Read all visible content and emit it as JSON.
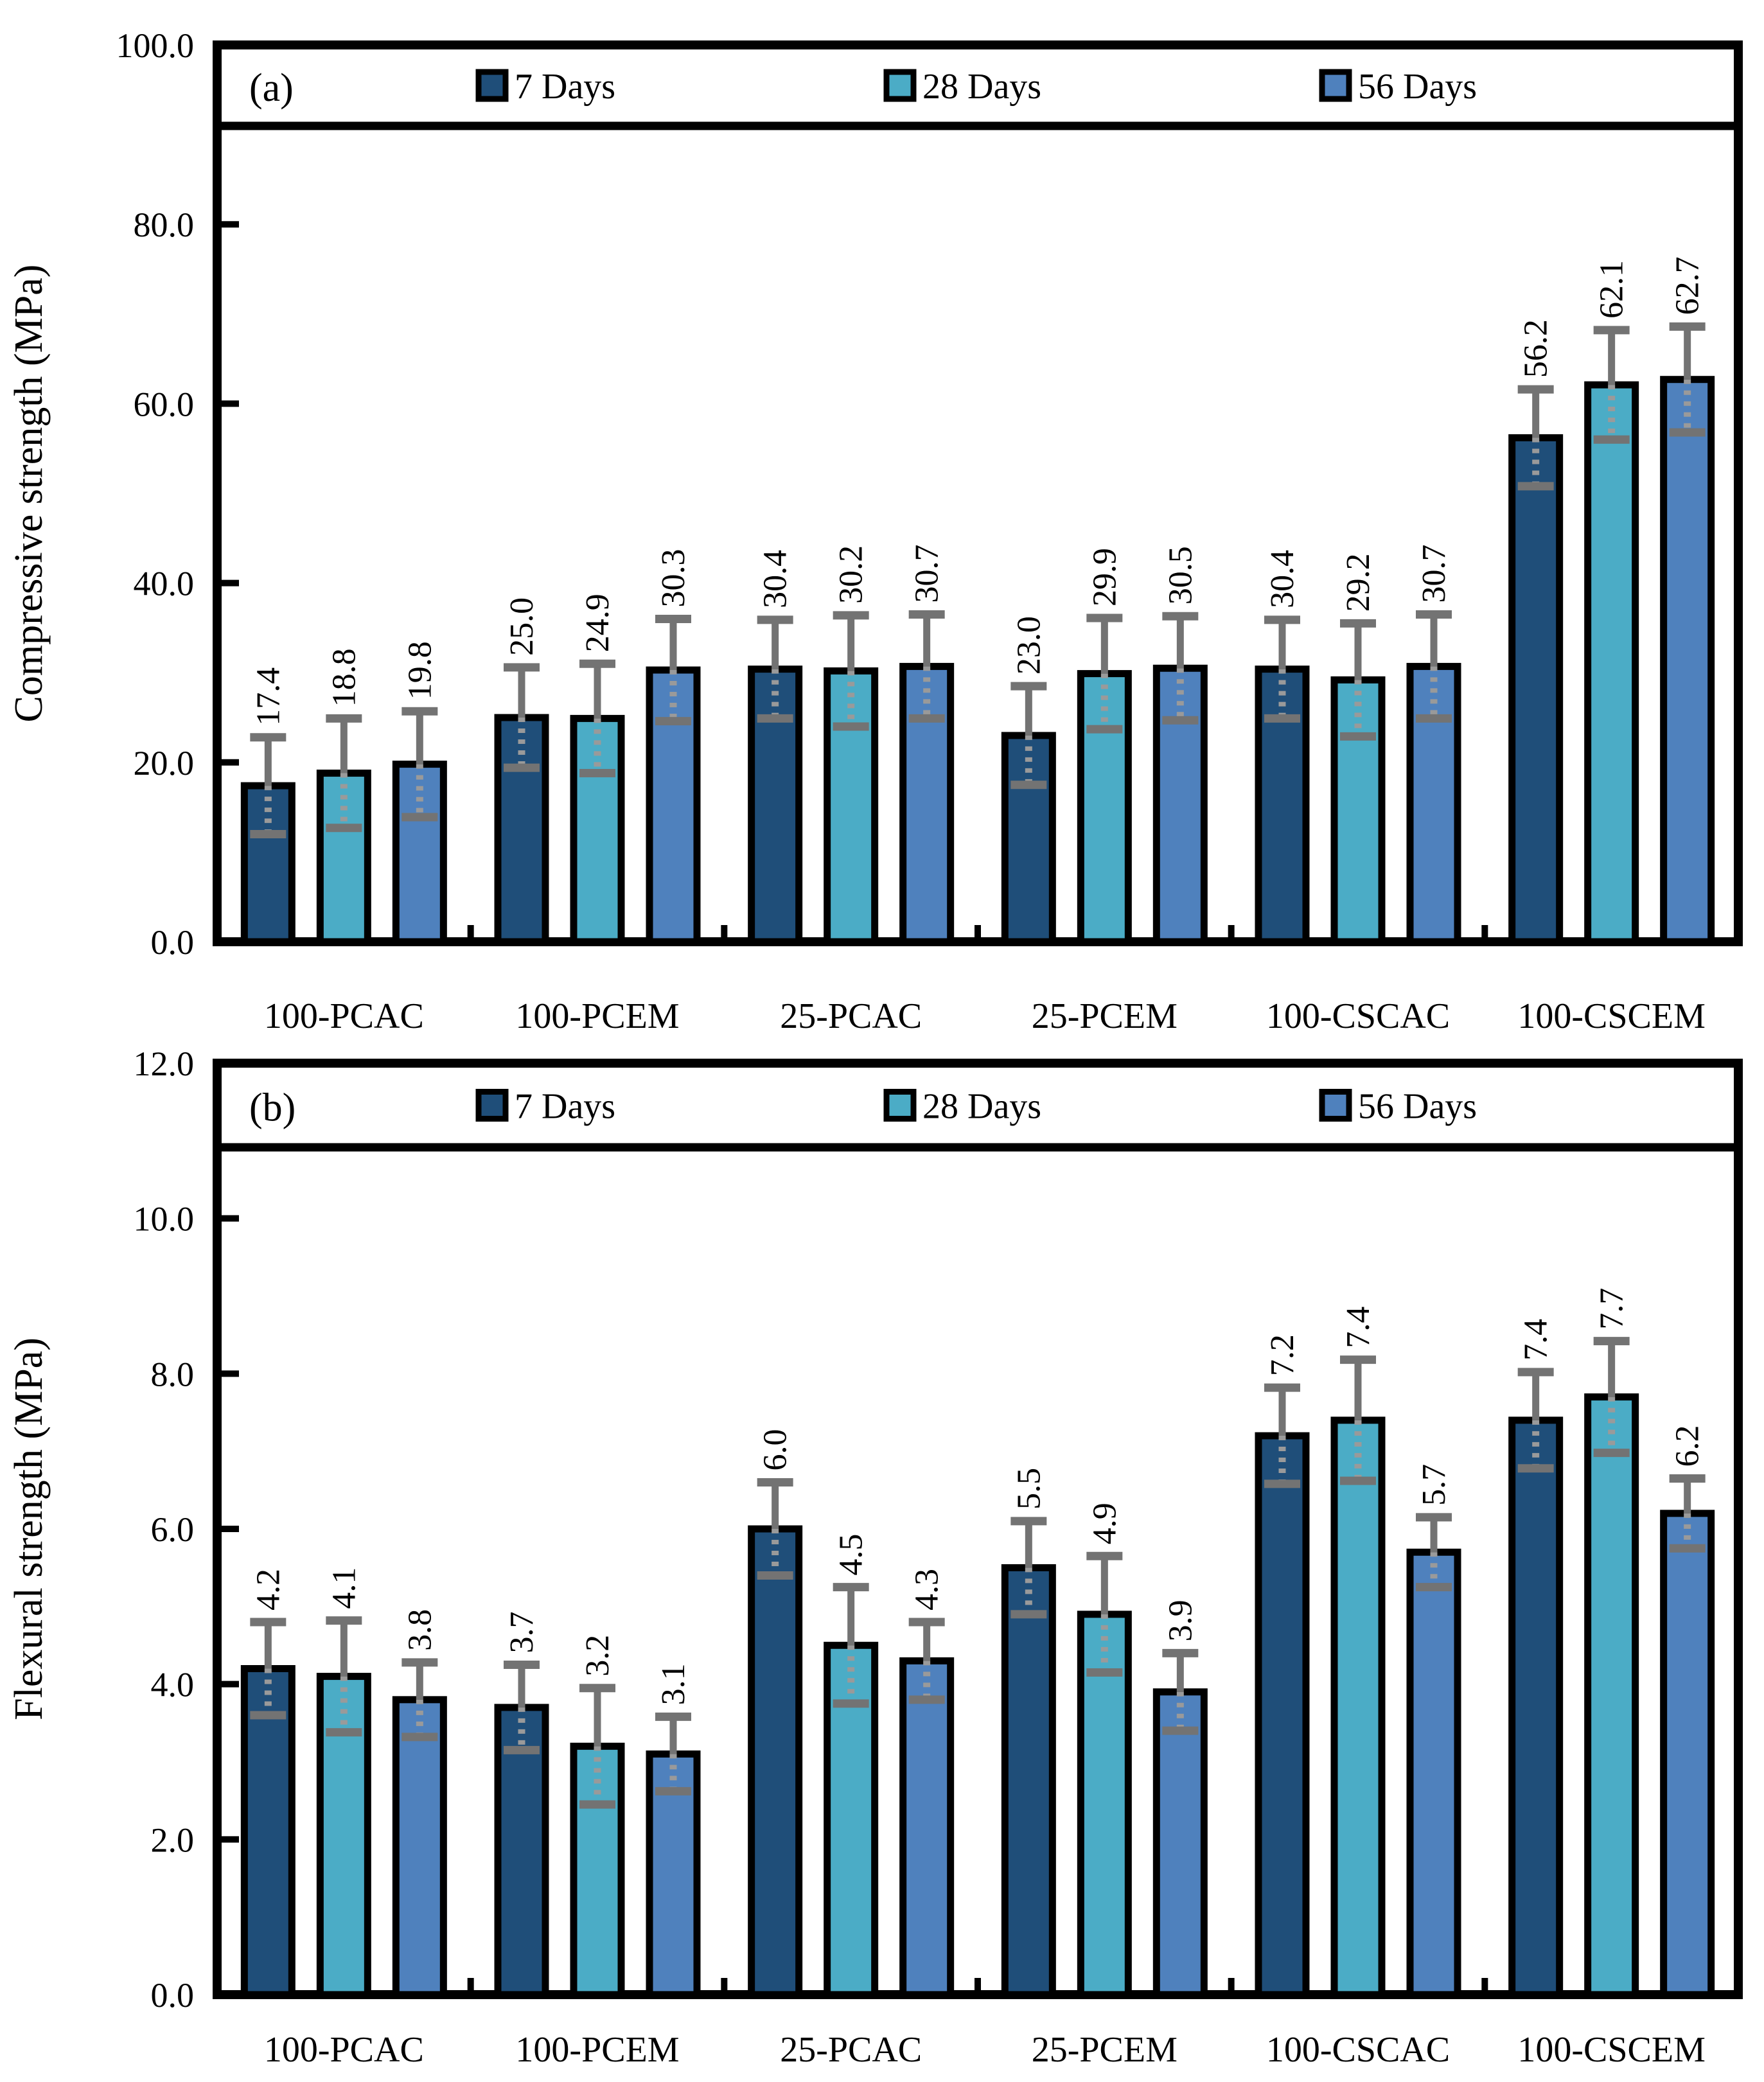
{
  "figure": {
    "background": "#ffffff",
    "bar_border_color": "#000000",
    "error_bar_color": "#737373",
    "error_bar_inner_color": "#9a9a9a"
  },
  "chart_data": [
    {
      "type": "bar",
      "panel_label": "(a)",
      "ylabel": "Compressive strength (MPa)",
      "ylim": [
        0,
        100
      ],
      "ytick_step": 20,
      "ytick_labels": [
        "0.0",
        "20.0",
        "40.0",
        "60.0",
        "80.0",
        "100.0"
      ],
      "grid": false,
      "legend_position": "top-band",
      "legend": [
        "7 Days",
        "28 Days",
        "56 Days"
      ],
      "categories": [
        "100-PCAC",
        "100-PCEM",
        "25-PCAC",
        "25-PCEM",
        "100-CSCAC",
        "100-CSCEM"
      ],
      "series": [
        {
          "name": "7 Days",
          "color": "#1F4E79",
          "values": [
            17.4,
            25.0,
            30.4,
            23.0,
            30.4,
            56.2
          ],
          "errors": [
            5.4,
            5.6,
            5.5,
            5.5,
            5.5,
            5.4
          ]
        },
        {
          "name": "28 Days",
          "color": "#4BACC6",
          "values": [
            18.8,
            24.9,
            30.2,
            29.9,
            29.2,
            62.1
          ],
          "errors": [
            6.1,
            6.1,
            6.2,
            6.2,
            6.3,
            6.1
          ]
        },
        {
          "name": "56 Days",
          "color": "#4F81BD",
          "values": [
            19.8,
            30.3,
            30.7,
            30.5,
            30.7,
            62.7
          ],
          "errors": [
            5.9,
            5.7,
            5.8,
            5.8,
            5.8,
            5.9
          ]
        }
      ],
      "value_labels": [
        [
          "17.4",
          "25.0",
          "30.4",
          "23.0",
          "30.4",
          "56.2"
        ],
        [
          "18.8",
          "24.9",
          "30.2",
          "29.9",
          "29.2",
          "62.1"
        ],
        [
          "19.8",
          "30.3",
          "30.7",
          "30.5",
          "30.7",
          "62.7"
        ]
      ]
    },
    {
      "type": "bar",
      "panel_label": "(b)",
      "ylabel": "Flexural strength (MPa)",
      "ylim": [
        0,
        12
      ],
      "ytick_step": 2,
      "ytick_labels": [
        "0.0",
        "2.0",
        "4.0",
        "6.0",
        "8.0",
        "10.0",
        "12.0"
      ],
      "grid": false,
      "legend_position": "top-band",
      "legend": [
        "7 Days",
        "28 Days",
        "56 Days"
      ],
      "categories": [
        "100-PCAC",
        "100-PCEM",
        "25-PCAC",
        "25-PCEM",
        "100-CSCAC",
        "100-CSCEM"
      ],
      "series": [
        {
          "name": "7 Days",
          "color": "#1F4E79",
          "values": [
            4.2,
            3.7,
            6.0,
            5.5,
            7.2,
            7.4
          ],
          "errors": [
            0.6,
            0.55,
            0.6,
            0.6,
            0.62,
            0.62
          ]
        },
        {
          "name": "28 Days",
          "color": "#4BACC6",
          "values": [
            4.1,
            3.2,
            4.5,
            4.9,
            7.4,
            7.7
          ],
          "errors": [
            0.72,
            0.75,
            0.75,
            0.75,
            0.78,
            0.72
          ]
        },
        {
          "name": "56 Days",
          "color": "#4F81BD",
          "values": [
            3.8,
            3.1,
            4.3,
            3.9,
            5.7,
            6.2
          ],
          "errors": [
            0.48,
            0.48,
            0.5,
            0.5,
            0.45,
            0.45
          ]
        }
      ],
      "value_labels": [
        [
          "4.2",
          "3.7",
          "6.0",
          "5.5",
          "7.2",
          "7.4"
        ],
        [
          "4.1",
          "3.2",
          "4.5",
          "4.9",
          "7.4",
          "7.7"
        ],
        [
          "3.8",
          "3.1",
          "4.3",
          "3.9",
          "5.7",
          "6.2"
        ]
      ]
    }
  ]
}
